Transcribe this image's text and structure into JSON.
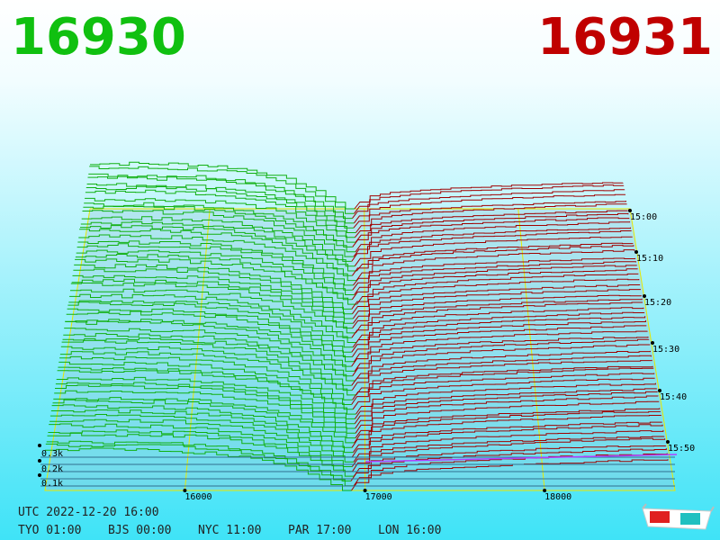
{
  "header": {
    "bid": "16930",
    "ask": "16931"
  },
  "price_axis": {
    "labels": [
      "16000",
      "17000",
      "18000"
    ]
  },
  "time_axis": {
    "labels": [
      "15:00",
      "15:10",
      "15:20",
      "15:30",
      "15:40",
      "15:50"
    ]
  },
  "volume_axis": {
    "labels": [
      "0.3k",
      "0.2k",
      "0.1k"
    ]
  },
  "footer": {
    "utc": "UTC 2022-12-20 16:00",
    "clocks": [
      "TYO 01:00",
      "BJS 00:00",
      "NYC 11:00",
      "PAR 17:00",
      "LON 16:00"
    ]
  }
}
